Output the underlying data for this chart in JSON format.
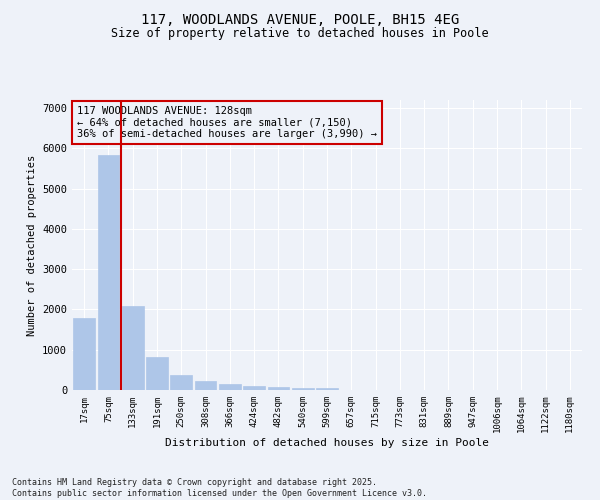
{
  "title_line1": "117, WOODLANDS AVENUE, POOLE, BH15 4EG",
  "title_line2": "Size of property relative to detached houses in Poole",
  "xlabel": "Distribution of detached houses by size in Poole",
  "ylabel": "Number of detached properties",
  "bar_labels": [
    "17sqm",
    "75sqm",
    "133sqm",
    "191sqm",
    "250sqm",
    "308sqm",
    "366sqm",
    "424sqm",
    "482sqm",
    "540sqm",
    "599sqm",
    "657sqm",
    "715sqm",
    "773sqm",
    "831sqm",
    "889sqm",
    "947sqm",
    "1006sqm",
    "1064sqm",
    "1122sqm",
    "1180sqm"
  ],
  "bar_values": [
    1780,
    5830,
    2090,
    820,
    380,
    220,
    150,
    90,
    70,
    55,
    50,
    0,
    0,
    0,
    0,
    0,
    0,
    0,
    0,
    0,
    0
  ],
  "bar_color": "#aec6e8",
  "vline_x_index": 1.5,
  "vline_color": "#cc0000",
  "annotation_text": "117 WOODLANDS AVENUE: 128sqm\n← 64% of detached houses are smaller (7,150)\n36% of semi-detached houses are larger (3,990) →",
  "annotation_box_color": "#cc0000",
  "annotation_fontsize": 7.5,
  "background_color": "#eef2f9",
  "grid_color": "#ffffff",
  "ylim": [
    0,
    7200
  ],
  "yticks": [
    0,
    1000,
    2000,
    3000,
    4000,
    5000,
    6000,
    7000
  ],
  "footer_line1": "Contains HM Land Registry data © Crown copyright and database right 2025.",
  "footer_line2": "Contains public sector information licensed under the Open Government Licence v3.0."
}
